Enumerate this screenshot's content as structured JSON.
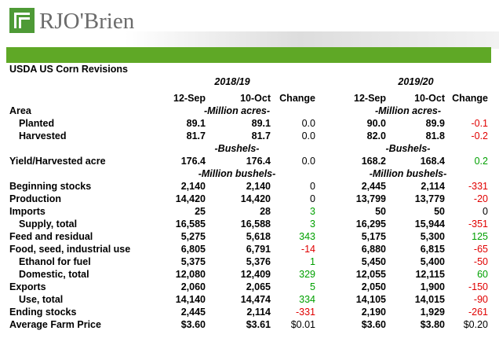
{
  "header": {
    "logo": "RJO'Brien"
  },
  "table": {
    "title": "USDA US Corn Revisions",
    "years": [
      "2018/19",
      "2019/20"
    ],
    "columns": [
      "12-Sep",
      "10-Oct",
      "Change",
      "12-Sep",
      "10-Oct",
      "Change"
    ],
    "rows": [
      {
        "label": "Area",
        "units": [
          "-Million acres-",
          "-Million acres-"
        ]
      },
      {
        "label": "Planted",
        "indent": true,
        "cells": [
          "89.1",
          "89.1",
          "0.0",
          "90.0",
          "89.9",
          "-0.1"
        ]
      },
      {
        "label": "Harvested",
        "indent": true,
        "cells": [
          "81.7",
          "81.7",
          "0.0",
          "82.0",
          "81.8",
          "-0.2"
        ]
      },
      {
        "units": [
          "-Bushels-",
          "-Bushels-"
        ]
      },
      {
        "label": "Yield/Harvested acre",
        "cells": [
          "176.4",
          "176.4",
          "0.0",
          "168.2",
          "168.4",
          "0.2"
        ]
      },
      {
        "units": [
          "-Million bushels-",
          "-Million bushels-"
        ]
      },
      {
        "label": "Beginning stocks",
        "cells": [
          "2,140",
          "2,140",
          "0",
          "2,445",
          "2,114",
          "-331"
        ]
      },
      {
        "label": "Production",
        "cells": [
          "14,420",
          "14,420",
          "0",
          "13,799",
          "13,779",
          "-20"
        ]
      },
      {
        "label": "Imports",
        "cells": [
          "25",
          "28",
          "3",
          "50",
          "50",
          "0"
        ]
      },
      {
        "label": "Supply, total",
        "indent": true,
        "cells": [
          "16,585",
          "16,588",
          "3",
          "16,295",
          "15,944",
          "-351"
        ]
      },
      {
        "label": "Feed and residual",
        "cells": [
          "5,275",
          "5,618",
          "343",
          "5,175",
          "5,300",
          "125"
        ]
      },
      {
        "label": "Food, seed, industrial use",
        "cells": [
          "6,805",
          "6,791",
          "-14",
          "6,880",
          "6,815",
          "-65"
        ]
      },
      {
        "label": "Ethanol for fuel",
        "indent": true,
        "cells": [
          "5,375",
          "5,376",
          "1",
          "5,450",
          "5,400",
          "-50"
        ]
      },
      {
        "label": "Domestic, total",
        "indent": true,
        "cells": [
          "12,080",
          "12,409",
          "329",
          "12,055",
          "12,115",
          "60"
        ]
      },
      {
        "label": "Exports",
        "cells": [
          "2,060",
          "2,065",
          "5",
          "2,050",
          "1,900",
          "-150"
        ]
      },
      {
        "label": "Use, total",
        "indent": true,
        "cells": [
          "14,140",
          "14,474",
          "334",
          "14,105",
          "14,015",
          "-90"
        ]
      },
      {
        "label": "Ending stocks",
        "cells": [
          "2,445",
          "2,114",
          "-331",
          "2,190",
          "1,929",
          "-261"
        ]
      },
      {
        "label": "Average Farm Price",
        "cells": [
          "$3.60",
          "$3.61",
          "$0.01",
          "$3.60",
          "$3.80",
          "$0.20"
        ]
      }
    ]
  }
}
